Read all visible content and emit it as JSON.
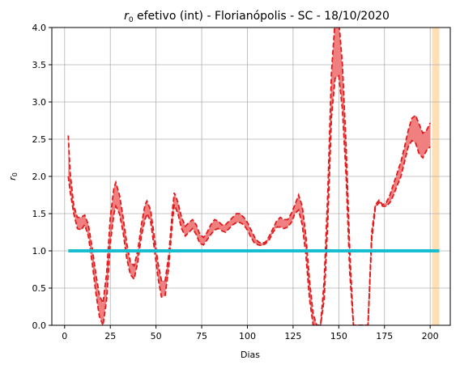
{
  "chart_data": {
    "type": "line",
    "title": {
      "r_symbol": "r",
      "r_subscript": "0",
      "rest": " efetivo (int) - Florianópolis - SC - 18/10/2020"
    },
    "xlabel": "Dias",
    "ylabel": {
      "symbol": "r",
      "subscript": "0"
    },
    "xlim": [
      -7,
      211
    ],
    "ylim": [
      0,
      4.0
    ],
    "xticks": [
      0,
      25,
      50,
      75,
      100,
      125,
      150,
      175,
      200
    ],
    "yticks": [
      "0.0",
      "0.5",
      "1.0",
      "1.5",
      "2.0",
      "2.5",
      "3.0",
      "3.5",
      "4.0"
    ],
    "grid": true,
    "colors": {
      "band_fill": "#f08080",
      "band_edge": "#e31a1c",
      "reference": "#17becf",
      "highlight": "#ffdfb3",
      "grid": "#b0b0b0"
    },
    "reference_line": {
      "y": 1.0,
      "x_range": [
        2,
        205
      ]
    },
    "highlight_span": {
      "x_range": [
        201,
        205
      ]
    },
    "band": {
      "x": [
        2,
        3,
        5,
        7,
        9,
        11,
        13,
        15,
        17,
        19,
        21,
        23,
        25,
        27,
        28,
        30,
        32,
        34,
        36,
        38,
        40,
        42,
        44,
        45,
        47,
        49,
        51,
        53,
        55,
        57,
        59,
        60,
        62,
        64,
        66,
        68,
        70,
        72,
        74,
        76,
        78,
        80,
        82,
        84,
        86,
        88,
        90,
        92,
        94,
        96,
        98,
        100,
        102,
        104,
        106,
        108,
        110,
        112,
        114,
        116,
        118,
        120,
        122,
        124,
        126,
        128,
        130,
        132,
        134,
        136,
        138,
        140,
        142,
        144,
        146,
        148,
        150,
        152,
        154,
        156,
        158,
        160,
        162,
        164,
        166,
        168,
        170,
        172,
        174,
        176,
        178,
        180,
        182,
        184,
        186,
        188,
        190,
        192,
        194,
        196,
        198,
        200
      ],
      "upper": [
        2.55,
        2.05,
        1.6,
        1.45,
        1.45,
        1.48,
        1.35,
        1.05,
        0.7,
        0.4,
        0.3,
        0.7,
        1.45,
        1.85,
        1.92,
        1.75,
        1.45,
        1.1,
        0.85,
        0.8,
        1.0,
        1.35,
        1.62,
        1.67,
        1.55,
        1.2,
        0.85,
        0.6,
        0.6,
        0.95,
        1.55,
        1.78,
        1.65,
        1.45,
        1.33,
        1.38,
        1.42,
        1.35,
        1.22,
        1.18,
        1.25,
        1.35,
        1.42,
        1.4,
        1.35,
        1.35,
        1.4,
        1.45,
        1.5,
        1.5,
        1.45,
        1.38,
        1.28,
        1.18,
        1.12,
        1.1,
        1.12,
        1.2,
        1.3,
        1.4,
        1.45,
        1.42,
        1.42,
        1.5,
        1.62,
        1.75,
        1.6,
        1.2,
        0.6,
        0.15,
        0.0,
        0.0,
        0.6,
        1.8,
        3.4,
        4.1,
        4.1,
        3.5,
        2.4,
        1.0,
        0.0,
        0.0,
        0.0,
        0.0,
        0.0,
        1.25,
        1.62,
        1.68,
        1.62,
        1.65,
        1.75,
        1.9,
        2.05,
        2.2,
        2.4,
        2.62,
        2.78,
        2.82,
        2.7,
        2.58,
        2.62,
        2.72
      ],
      "lower": [
        2.0,
        1.8,
        1.5,
        1.3,
        1.28,
        1.35,
        1.2,
        0.85,
        0.45,
        0.12,
        0.0,
        0.35,
        1.1,
        1.5,
        1.6,
        1.5,
        1.25,
        0.9,
        0.68,
        0.62,
        0.85,
        1.2,
        1.42,
        1.5,
        1.4,
        1.05,
        0.65,
        0.38,
        0.4,
        0.78,
        1.4,
        1.62,
        1.5,
        1.3,
        1.2,
        1.25,
        1.3,
        1.22,
        1.1,
        1.08,
        1.15,
        1.22,
        1.28,
        1.3,
        1.27,
        1.25,
        1.3,
        1.35,
        1.38,
        1.38,
        1.35,
        1.28,
        1.18,
        1.1,
        1.08,
        1.07,
        1.1,
        1.15,
        1.25,
        1.32,
        1.32,
        1.3,
        1.32,
        1.38,
        1.5,
        1.55,
        1.35,
        0.95,
        0.35,
        0.0,
        0.0,
        0.0,
        0.35,
        1.4,
        2.8,
        3.32,
        3.35,
        2.9,
        2.0,
        0.7,
        0.0,
        0.0,
        0.0,
        0.0,
        0.0,
        1.15,
        1.58,
        1.65,
        1.6,
        1.6,
        1.65,
        1.75,
        1.88,
        2.0,
        2.2,
        2.4,
        2.48,
        2.45,
        2.3,
        2.25,
        2.35,
        2.4
      ]
    }
  }
}
